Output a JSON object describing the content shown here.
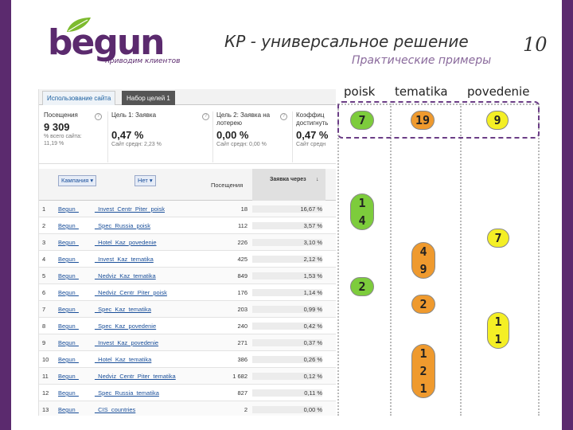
{
  "slide": {
    "title": "КР - универсальное решение",
    "subtitle": "Практические примеры",
    "number": "10"
  },
  "logo": {
    "word": "begun",
    "tagline": "приводим клиентов",
    "color": "#5b2a6e"
  },
  "analytics": {
    "tabs": [
      "Использование сайта",
      "Набор целей 1"
    ],
    "metrics": [
      {
        "label": "Посещения",
        "value": "9 309",
        "sub1": "% всего сайта:",
        "sub2": "11,19 %"
      },
      {
        "label": "Цель 1: Заявка",
        "value": "0,47 %",
        "sub1": "Сайт средн: 2,23 %",
        "sub2": ""
      },
      {
        "label": "Цель 2: Заявка на лотерею",
        "value": "0,00 %",
        "sub1": "Сайт средн: 0,00 %",
        "sub2": ""
      },
      {
        "label": "Коэффиц достигнуть",
        "value": "0,47 %",
        "sub1": "Сайт средн",
        "sub2": ""
      }
    ],
    "dimension_buttons": [
      "Кампания",
      "Нет"
    ],
    "columns": {
      "visits": "Посещения",
      "rate": "Заявка через"
    },
    "rows": [
      {
        "n": "1",
        "c1": "Begun_",
        "c2": "_Invest_Centr_Piter_poisk",
        "visits": "18",
        "rate": "16,67 %"
      },
      {
        "n": "2",
        "c1": "Begun_",
        "c2": "_Spec_Russia_poisk",
        "visits": "112",
        "rate": "3,57 %"
      },
      {
        "n": "3",
        "c1": "Begun_",
        "c2": "_Hotel_Kaz_povedenie",
        "visits": "226",
        "rate": "3,10 %"
      },
      {
        "n": "4",
        "c1": "Begun_",
        "c2": "_Invest_Kaz_tematika",
        "visits": "425",
        "rate": "2,12 %"
      },
      {
        "n": "5",
        "c1": "Begun_",
        "c2": "_Nedviz_Kaz_tematika",
        "visits": "849",
        "rate": "1,53 %"
      },
      {
        "n": "6",
        "c1": "Begun_",
        "c2": "_Nedviz_Centr_Piter_poisk",
        "visits": "176",
        "rate": "1,14 %"
      },
      {
        "n": "7",
        "c1": "Begun_",
        "c2": "_Spec_Kaz_tematika",
        "visits": "203",
        "rate": "0,99 %"
      },
      {
        "n": "8",
        "c1": "Begun_",
        "c2": "_Spec_Kaz_povedenie",
        "visits": "240",
        "rate": "0,42 %"
      },
      {
        "n": "9",
        "c1": "Begun_",
        "c2": "_Invest_Kaz_povedenie",
        "visits": "271",
        "rate": "0,37 %"
      },
      {
        "n": "10",
        "c1": "Begun_",
        "c2": "_Hotel_Kaz_tematika",
        "visits": "386",
        "rate": "0,26 %"
      },
      {
        "n": "11",
        "c1": "Begun_",
        "c2": "_Nedviz_Centr_Piter_tematika",
        "visits": "1 682",
        "rate": "0,12 %"
      },
      {
        "n": "12",
        "c1": "Begun_",
        "c2": "_Spec_Russia_tematika",
        "visits": "827",
        "rate": "0,11 %"
      },
      {
        "n": "13",
        "c1": "Begun_",
        "c2": "_CIS_countries",
        "visits": "2",
        "rate": "0,00 %"
      }
    ]
  },
  "matrix": {
    "columns": [
      "poisk",
      "tematika",
      "povedenie"
    ],
    "badges": [
      {
        "text": [
          "7"
        ],
        "color": "green"
      },
      {
        "text": [
          "19"
        ],
        "color": "orange"
      },
      {
        "text": [
          "9"
        ],
        "color": "yellow"
      },
      {
        "text": [
          "1",
          "4"
        ],
        "color": "green"
      },
      {
        "text": [
          "7"
        ],
        "color": "yellow"
      },
      {
        "text": [
          "4",
          "9"
        ],
        "color": "orange"
      },
      {
        "text": [
          "2"
        ],
        "color": "green"
      },
      {
        "text": [
          "2"
        ],
        "color": "orange"
      },
      {
        "text": [
          "1",
          "1"
        ],
        "color": "yellow"
      },
      {
        "text": [
          "1",
          "2",
          "1"
        ],
        "color": "orange"
      }
    ],
    "colors": {
      "green": "#7dcc3c",
      "orange": "#ef9a2e",
      "yellow": "#f4ef25",
      "highlight": "#6b3d86"
    }
  }
}
